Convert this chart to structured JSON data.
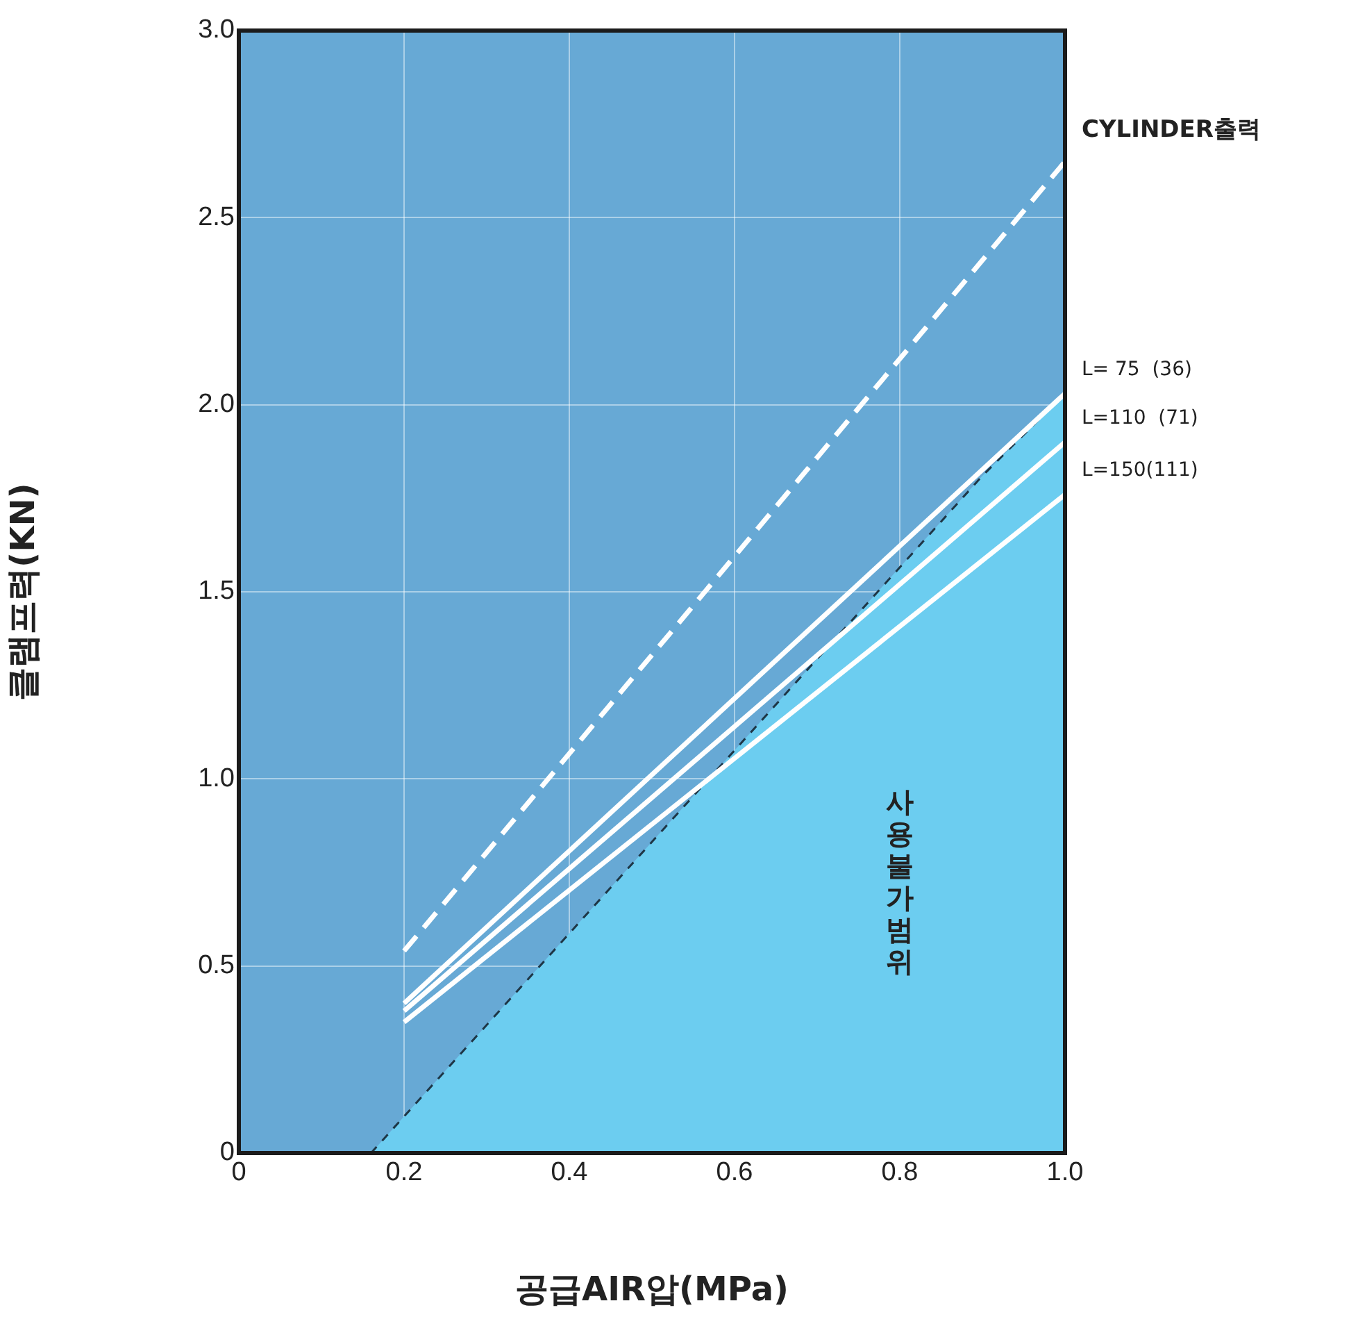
{
  "chart_data": {
    "type": "line",
    "xlabel": "공급AIR압(MPa)",
    "ylabel": "클램프력(KN)",
    "xlim": [
      0,
      1.0
    ],
    "xticks": [
      0,
      0.2,
      0.4,
      0.6,
      0.8,
      {
        "value": 1.0,
        "label": "1.0"
      }
    ],
    "ylim": [
      0,
      3.0
    ],
    "yticks": [
      0,
      0.5,
      {
        "value": 1.0,
        "label": "1.0"
      },
      1.5,
      {
        "value": 2.0,
        "label": "2.0"
      },
      2.5,
      {
        "value": 3.0,
        "label": "3.0"
      }
    ],
    "series": [
      {
        "type": "area",
        "color": "#6ccdf0",
        "x": [
          0.16,
          0.9,
          1.0
        ],
        "values": [
          0,
          1.81,
          2.03
        ],
        "line_style": "dashed"
      },
      {
        "name": "CYLINDER출력",
        "color": "#ffffff",
        "x": [
          0.2,
          1.0
        ],
        "values": [
          0.54,
          2.65
        ],
        "line_style": "dashed"
      },
      {
        "name": "L= 75  (36)",
        "color": "#ffffff",
        "x": [
          0.2,
          1.0
        ],
        "values": [
          0.4,
          2.03
        ]
      },
      {
        "name": "L=110  (71)",
        "color": "#ffffff",
        "x": [
          0.2,
          1.0
        ],
        "values": [
          0.38,
          1.9
        ]
      },
      {
        "name": "L=150(111)",
        "color": "#ffffff",
        "x": [
          0.2,
          1.0
        ],
        "values": [
          0.35,
          1.76
        ]
      }
    ],
    "annotations": [
      "사용불가범위"
    ],
    "grid": true,
    "legend": false,
    "marker": "none"
  }
}
